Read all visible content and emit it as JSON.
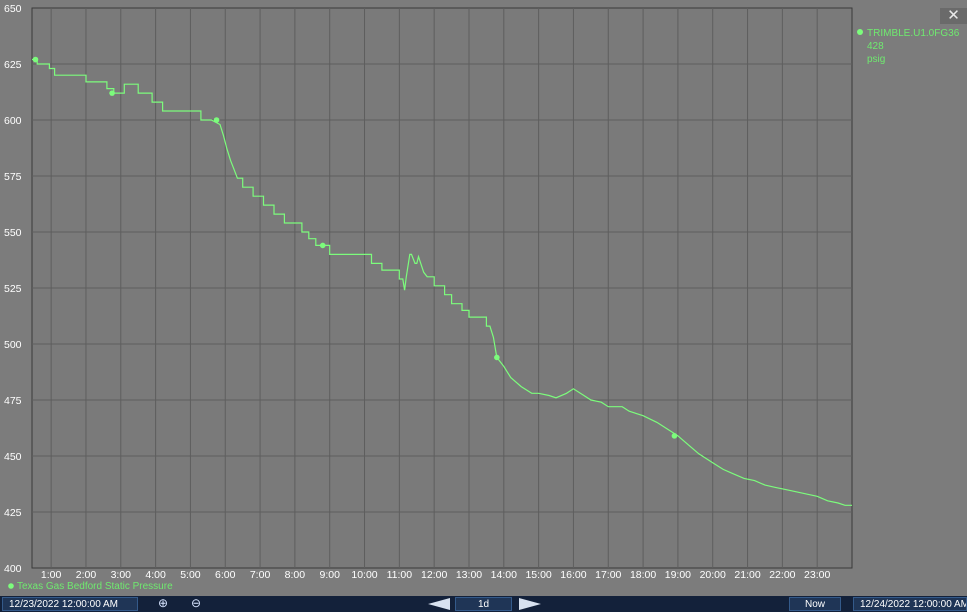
{
  "window": {
    "close_glyph": "✕"
  },
  "legend": {
    "tag_lines": [
      "TRIMBLE.U1.0FG36",
      "428",
      "psig"
    ],
    "series_label": "Texas Gas Bedford Static Pressure",
    "color": "#7CFC7C"
  },
  "toolbar": {
    "start_time": "12/23/2022 12:00:00 AM",
    "zoom_in_icon": "⊕",
    "zoom_out_icon": "⊖",
    "period": "1d",
    "now_label": "Now",
    "end_time": "12/24/2022 12:00:00 AM"
  },
  "chart_data": {
    "type": "line",
    "title": "",
    "xlabel": "",
    "ylabel": "",
    "xlim": [
      0.45,
      24
    ],
    "ylim": [
      400,
      650
    ],
    "y_ticks": [
      400,
      425,
      450,
      475,
      500,
      525,
      550,
      575,
      600,
      625,
      650
    ],
    "x_ticks": [
      {
        "v": 1,
        "label": "1:00"
      },
      {
        "v": 2,
        "label": "2:00"
      },
      {
        "v": 3,
        "label": "3:00"
      },
      {
        "v": 4,
        "label": "4:00"
      },
      {
        "v": 5,
        "label": "5:00"
      },
      {
        "v": 6,
        "label": "6:00"
      },
      {
        "v": 7,
        "label": "7:00"
      },
      {
        "v": 8,
        "label": "8:00"
      },
      {
        "v": 9,
        "label": "9:00"
      },
      {
        "v": 10,
        "label": "10:00"
      },
      {
        "v": 11,
        "label": "11:00"
      },
      {
        "v": 12,
        "label": "12:00"
      },
      {
        "v": 13,
        "label": "13:00"
      },
      {
        "v": 14,
        "label": "14:00"
      },
      {
        "v": 15,
        "label": "15:00"
      },
      {
        "v": 16,
        "label": "16:00"
      },
      {
        "v": 17,
        "label": "17:00"
      },
      {
        "v": 18,
        "label": "18:00"
      },
      {
        "v": 19,
        "label": "19:00"
      },
      {
        "v": 20,
        "label": "20:00"
      },
      {
        "v": 21,
        "label": "21:00"
      },
      {
        "v": 22,
        "label": "22:00"
      },
      {
        "v": 23,
        "label": "23:00"
      }
    ],
    "grid": true,
    "legend_position": "top-right",
    "series": [
      {
        "color": "#7CFC7C",
        "points": [
          [
            0.45,
            627
          ],
          [
            0.6,
            627
          ],
          [
            0.6,
            625
          ],
          [
            0.95,
            625
          ],
          [
            0.95,
            623
          ],
          [
            1.1,
            623
          ],
          [
            1.1,
            620
          ],
          [
            1.7,
            620
          ],
          [
            2.0,
            620
          ],
          [
            2.0,
            617
          ],
          [
            2.6,
            617
          ],
          [
            2.6,
            614
          ],
          [
            2.8,
            614
          ],
          [
            2.8,
            612
          ],
          [
            3.1,
            612
          ],
          [
            3.1,
            616
          ],
          [
            3.5,
            616
          ],
          [
            3.5,
            612
          ],
          [
            3.9,
            612
          ],
          [
            3.9,
            608
          ],
          [
            4.2,
            608
          ],
          [
            4.2,
            604
          ],
          [
            4.5,
            604
          ],
          [
            4.9,
            604
          ],
          [
            5.3,
            604
          ],
          [
            5.3,
            600
          ],
          [
            5.6,
            600
          ],
          [
            5.85,
            598
          ],
          [
            5.95,
            593
          ],
          [
            6.05,
            587
          ],
          [
            6.15,
            582
          ],
          [
            6.25,
            578
          ],
          [
            6.35,
            574
          ],
          [
            6.5,
            574
          ],
          [
            6.5,
            570
          ],
          [
            6.8,
            570
          ],
          [
            6.8,
            566
          ],
          [
            7.1,
            566
          ],
          [
            7.1,
            562
          ],
          [
            7.4,
            562
          ],
          [
            7.4,
            558
          ],
          [
            7.7,
            558
          ],
          [
            7.7,
            554
          ],
          [
            7.9,
            554
          ],
          [
            8.2,
            554
          ],
          [
            8.2,
            550
          ],
          [
            8.4,
            550
          ],
          [
            8.4,
            547
          ],
          [
            8.6,
            547
          ],
          [
            8.6,
            544
          ],
          [
            9.0,
            544
          ],
          [
            9.0,
            540
          ],
          [
            9.6,
            540
          ],
          [
            10.2,
            540
          ],
          [
            10.2,
            536
          ],
          [
            10.5,
            536
          ],
          [
            10.5,
            533
          ],
          [
            11.0,
            533
          ],
          [
            11.0,
            529
          ],
          [
            11.1,
            529
          ],
          [
            11.15,
            524
          ],
          [
            11.2,
            530
          ],
          [
            11.3,
            540
          ],
          [
            11.35,
            540
          ],
          [
            11.45,
            536
          ],
          [
            11.5,
            536
          ],
          [
            11.55,
            539
          ],
          [
            11.7,
            532
          ],
          [
            11.8,
            530
          ],
          [
            12.0,
            530
          ],
          [
            12.0,
            526
          ],
          [
            12.3,
            526
          ],
          [
            12.3,
            522
          ],
          [
            12.5,
            522
          ],
          [
            12.5,
            518
          ],
          [
            12.8,
            518
          ],
          [
            12.8,
            515
          ],
          [
            13.0,
            515
          ],
          [
            13.0,
            512
          ],
          [
            13.5,
            512
          ],
          [
            13.5,
            508
          ],
          [
            13.6,
            508
          ],
          [
            13.7,
            503
          ],
          [
            13.8,
            494
          ],
          [
            14.0,
            490
          ],
          [
            14.2,
            485
          ],
          [
            14.5,
            481
          ],
          [
            14.8,
            478
          ],
          [
            15.0,
            478
          ],
          [
            15.3,
            477
          ],
          [
            15.5,
            476
          ],
          [
            15.8,
            478
          ],
          [
            16.0,
            480
          ],
          [
            16.3,
            477
          ],
          [
            16.5,
            475
          ],
          [
            16.8,
            474
          ],
          [
            17.0,
            472
          ],
          [
            17.4,
            472
          ],
          [
            17.6,
            470
          ],
          [
            18.0,
            468
          ],
          [
            18.4,
            465
          ],
          [
            18.7,
            462
          ],
          [
            19.0,
            459
          ],
          [
            19.3,
            455
          ],
          [
            19.6,
            451
          ],
          [
            20.0,
            447
          ],
          [
            20.3,
            444
          ],
          [
            20.6,
            442
          ],
          [
            20.9,
            440
          ],
          [
            21.2,
            439
          ],
          [
            21.5,
            437
          ],
          [
            21.8,
            436
          ],
          [
            22.1,
            435
          ],
          [
            22.4,
            434
          ],
          [
            22.7,
            433
          ],
          [
            23.0,
            432
          ],
          [
            23.3,
            430
          ],
          [
            23.6,
            429
          ],
          [
            23.8,
            428
          ],
          [
            24.0,
            428
          ]
        ],
        "markers": [
          [
            0.55,
            627
          ],
          [
            2.75,
            612
          ],
          [
            5.75,
            600
          ],
          [
            8.8,
            544
          ],
          [
            13.8,
            494
          ],
          [
            18.9,
            459
          ]
        ]
      }
    ]
  }
}
